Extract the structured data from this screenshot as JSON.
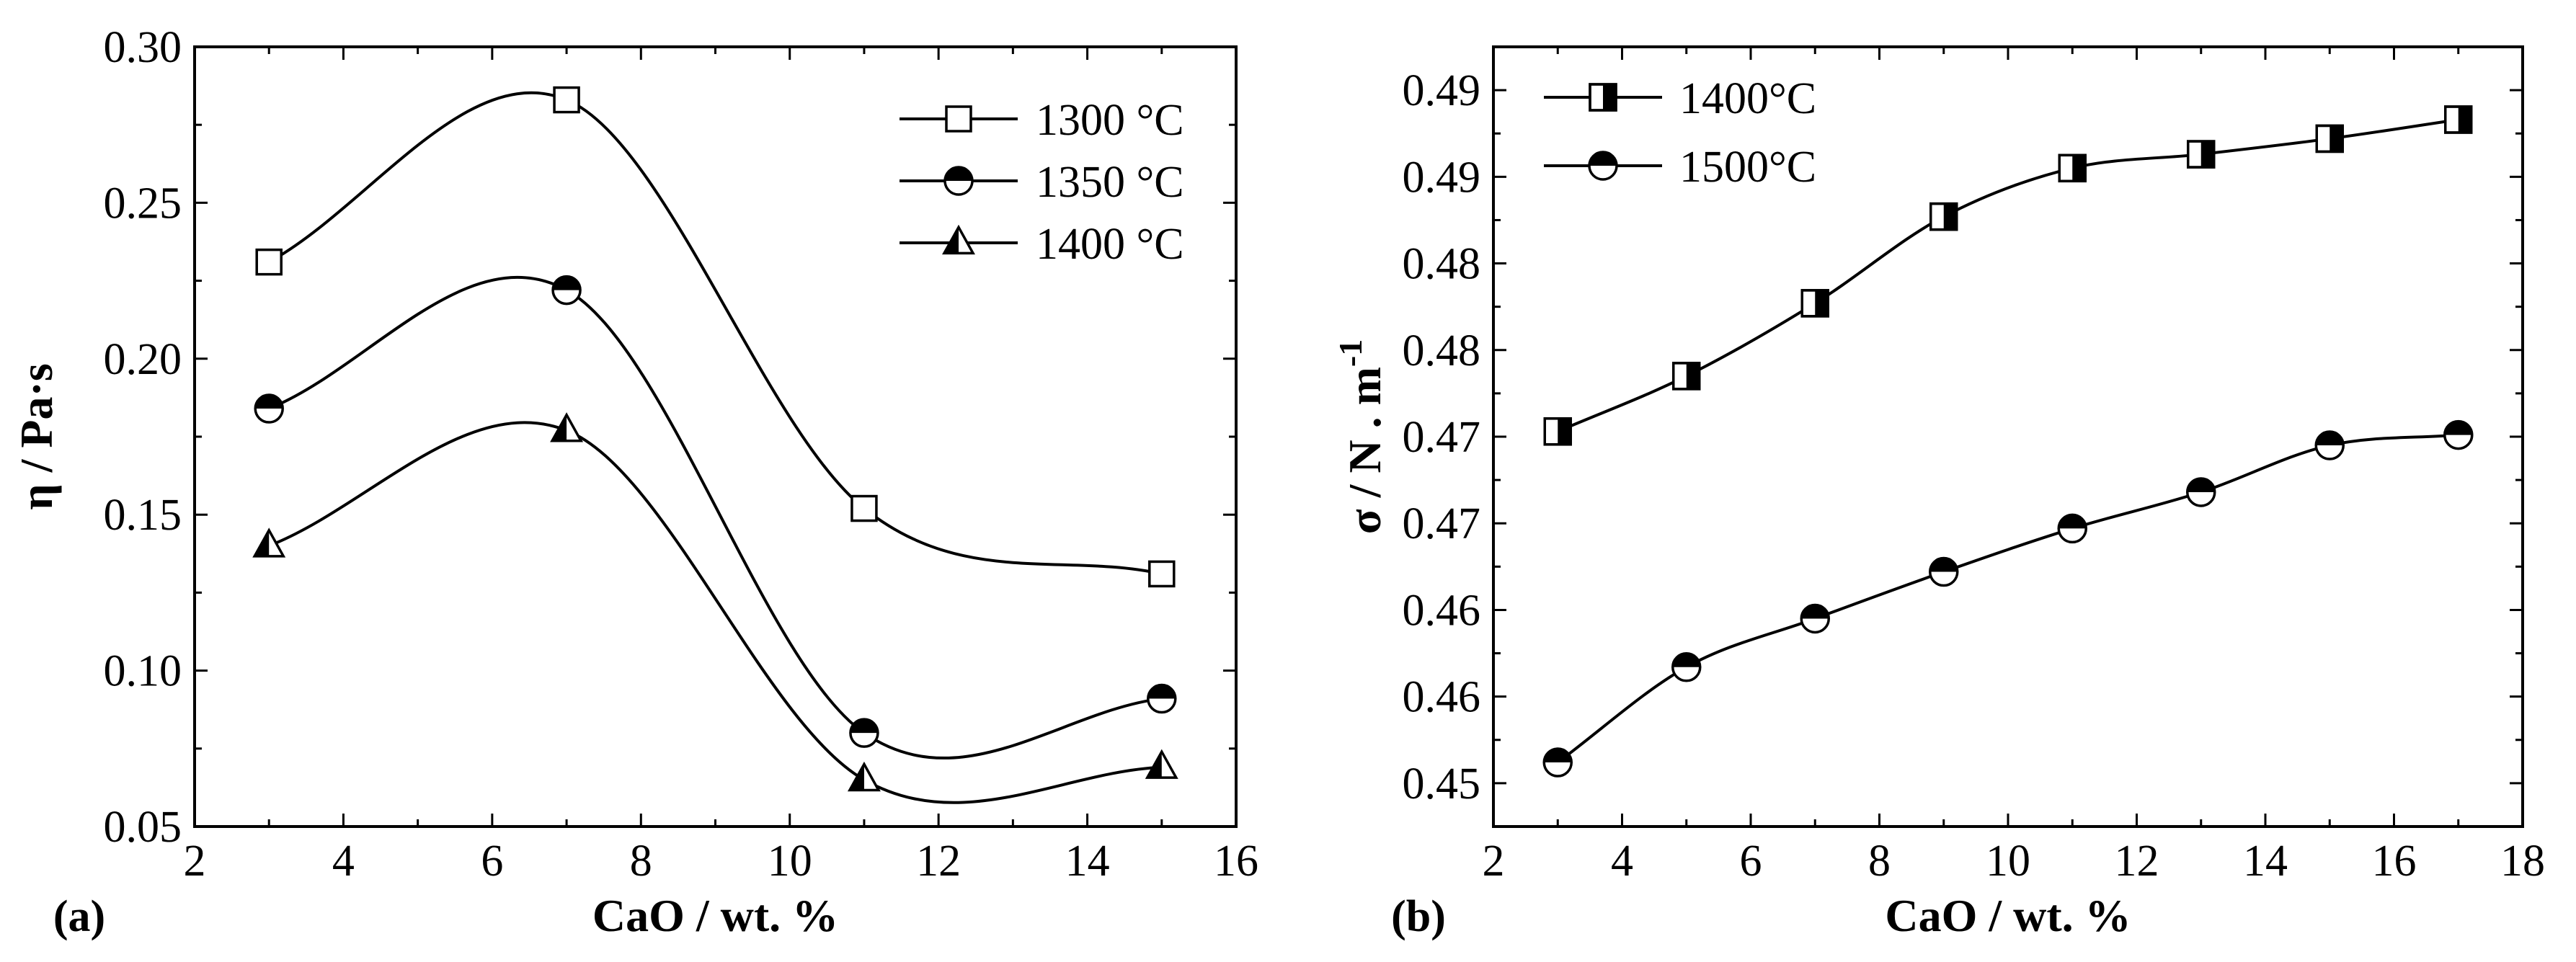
{
  "chart_data": [
    {
      "type": "line",
      "panel_label": "(a)",
      "xlabel": "CaO / wt. %",
      "ylabel": "η / Pa·s",
      "xlim": [
        2,
        16
      ],
      "ylim": [
        0.05,
        0.3
      ],
      "x_ticks": [
        2,
        4,
        6,
        8,
        10,
        12,
        14,
        16
      ],
      "x_tick_labels": [
        "2",
        "4",
        "6",
        "8",
        "10",
        "12",
        "14",
        "16"
      ],
      "y_ticks": [
        0.05,
        0.1,
        0.15,
        0.2,
        0.25,
        0.3
      ],
      "y_tick_labels": [
        "0.05",
        "0.10",
        "0.15",
        "0.20",
        "0.25",
        "0.30"
      ],
      "legend_position": "top-right",
      "series": [
        {
          "name": "1300 °C",
          "marker": "square-open",
          "x": [
            3,
            7,
            11,
            15
          ],
          "values": [
            0.231,
            0.283,
            0.152,
            0.131
          ]
        },
        {
          "name": "1350 °C",
          "marker": "circle-half-top",
          "x": [
            3,
            7,
            11,
            15
          ],
          "values": [
            0.184,
            0.222,
            0.08,
            0.091
          ]
        },
        {
          "name": "1400 °C",
          "marker": "triangle-half-left",
          "x": [
            3,
            7,
            11,
            15
          ],
          "values": [
            0.14,
            0.177,
            0.065,
            0.069
          ]
        }
      ]
    },
    {
      "type": "line",
      "panel_label": "(b)",
      "xlabel": "CaO / wt. %",
      "ylabel": "σ / N . m-1",
      "ylabel_main": "σ / N . m",
      "ylabel_sup": "-1",
      "xlim": [
        2,
        18
      ],
      "ylim": [
        0.4475,
        0.4925
      ],
      "x_ticks": [
        2,
        4,
        6,
        8,
        10,
        12,
        14,
        16,
        18
      ],
      "x_tick_labels": [
        "2",
        "4",
        "6",
        "8",
        "10",
        "12",
        "14",
        "16",
        "18"
      ],
      "y_ticks": [
        0.45,
        0.455,
        0.46,
        0.465,
        0.47,
        0.475,
        0.48,
        0.485,
        0.49
      ],
      "y_tick_labels": [
        "0.45",
        "0.46",
        "0.46",
        "0.47",
        "0.47",
        "0.48",
        "0.48",
        "0.49",
        "0.49"
      ],
      "legend_position": "top-left",
      "series": [
        {
          "name": "1400°C",
          "marker": "square-half-right",
          "x": [
            3,
            5,
            7,
            9,
            11,
            13,
            15,
            17
          ],
          "values": [
            0.4703,
            0.4735,
            0.4777,
            0.4827,
            0.4855,
            0.4863,
            0.4872,
            0.4883
          ]
        },
        {
          "name": "1500°C",
          "marker": "circle-half-top",
          "x": [
            3,
            5,
            7,
            9,
            11,
            13,
            15,
            17
          ],
          "values": [
            0.4512,
            0.4567,
            0.4595,
            0.4622,
            0.4647,
            0.4668,
            0.4695,
            0.4701
          ]
        }
      ]
    }
  ]
}
